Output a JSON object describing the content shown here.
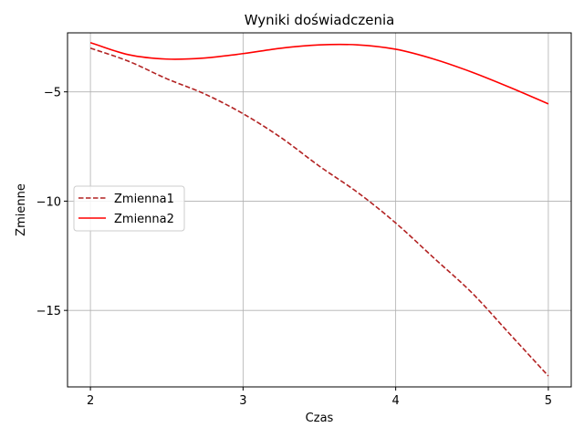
{
  "chart_data": {
    "type": "line",
    "title": "Wyniki doświadczenia",
    "xlabel": "Czas",
    "ylabel": "Zmienne",
    "xlim": [
      1.85,
      5.15
    ],
    "ylim": [
      -18.5,
      -2.3
    ],
    "xticks": [
      2,
      3,
      4,
      5
    ],
    "xtick_labels": [
      "2",
      "3",
      "4",
      "5"
    ],
    "yticks": [
      -15,
      -10,
      -5
    ],
    "ytick_labels": [
      "−15",
      "−10",
      "−5"
    ],
    "grid": true,
    "legend_position": "center-left",
    "x": [
      2.0,
      2.25,
      2.5,
      2.75,
      3.0,
      3.25,
      3.5,
      3.75,
      4.0,
      4.25,
      4.5,
      4.75,
      5.0
    ],
    "series": [
      {
        "name": "Zmienna1",
        "style": "dashed",
        "color": "#b22222",
        "values": [
          -3.0,
          -3.6,
          -4.4,
          -5.1,
          -6.0,
          -7.1,
          -8.4,
          -9.6,
          -11.0,
          -12.6,
          -14.2,
          -16.1,
          -18.0
        ]
      },
      {
        "name": "Zmienna2",
        "style": "solid",
        "color": "#ff0000",
        "values": [
          -2.75,
          -3.3,
          -3.5,
          -3.45,
          -3.25,
          -3.0,
          -2.85,
          -2.85,
          -3.05,
          -3.5,
          -4.1,
          -4.8,
          -5.55
        ]
      }
    ]
  }
}
